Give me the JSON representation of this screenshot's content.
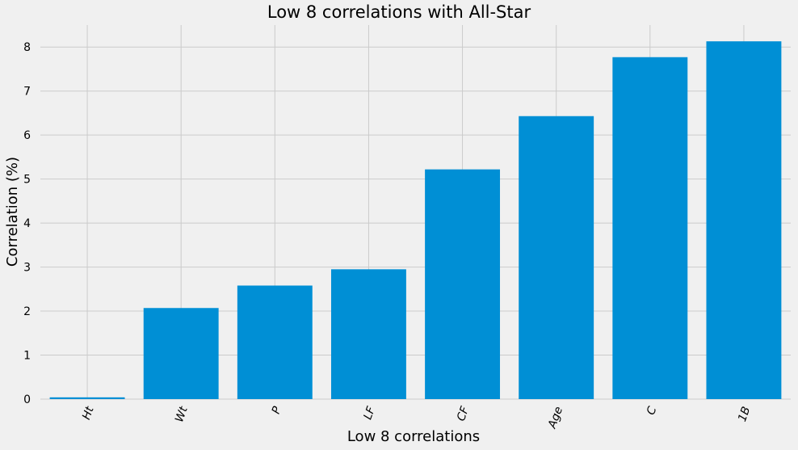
{
  "chart_data": {
    "type": "bar",
    "title": "Low 8 correlations with All-Star",
    "xlabel": "Low 8 correlations",
    "ylabel": "Correlation (%)",
    "categories": [
      "Ht",
      "Wt",
      "P",
      "LF",
      "CF",
      "Age",
      "C",
      "1B"
    ],
    "values": [
      0.04,
      2.07,
      2.58,
      2.95,
      5.22,
      6.43,
      7.77,
      8.13
    ],
    "ylim": [
      0,
      8.5
    ],
    "yticks": [
      "0",
      "1",
      "2",
      "3",
      "4",
      "5",
      "6",
      "7",
      "8"
    ],
    "grid": true,
    "bar_color": "#008fd5",
    "background_color": "#f0f0f0"
  }
}
